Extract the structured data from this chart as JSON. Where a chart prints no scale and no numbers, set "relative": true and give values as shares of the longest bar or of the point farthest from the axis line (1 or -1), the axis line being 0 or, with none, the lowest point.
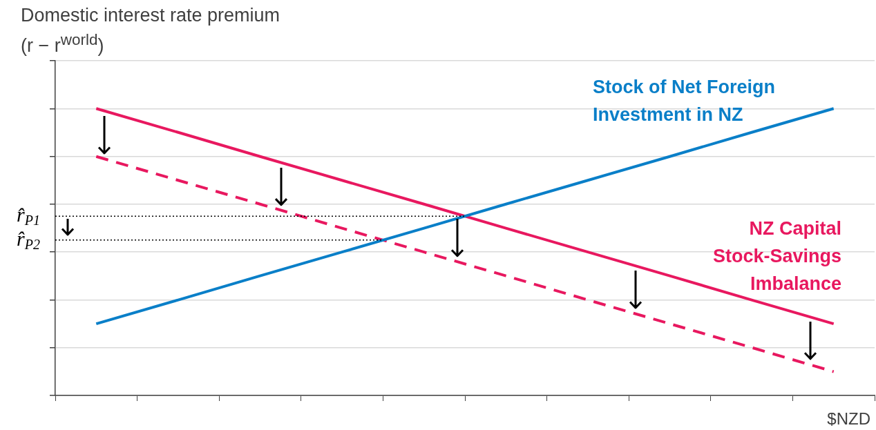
{
  "chart_data": {
    "type": "line",
    "xlabel": "$NZD",
    "ylabel": "Domestic interest rate premium (r − r$^{world}$)",
    "categories": [
      null,
      null,
      null,
      null,
      null,
      null,
      null,
      null,
      null,
      null
    ],
    "relative": true,
    "series": [
      {
        "name": "Stock of Net Foreign Investment in NZ",
        "color": "#0a7fc8",
        "values": [
          0.25,
          0.333,
          0.417,
          0.5,
          0.583,
          0.667,
          0.75,
          0.833,
          0.917,
          1
        ]
      },
      {
        "name": "NZ Capital Stock-Savings Imbalance",
        "color": "#e8185f",
        "values": [
          1,
          0.917,
          0.833,
          0.75,
          0.667,
          0.583,
          0.5,
          0.417,
          0.333,
          0.25
        ]
      },
      {
        "color": "#e8185f",
        "line_style": "dashed",
        "values": [
          0.833,
          0.75,
          0.667,
          0.583,
          0.5,
          0.417,
          0.333,
          0.25,
          0.167,
          0.083
        ]
      }
    ],
    "ref_lines": [
      {
        "axis": "y",
        "value": 0.625,
        "label": "r̂$_{P1}$",
        "color": "#000000",
        "line_style": "dotted"
      },
      {
        "axis": "y",
        "value": 0.542,
        "label": "r̂$_{P2}$",
        "color": "#000000",
        "line_style": "dotted"
      }
    ],
    "grid": "y",
    "legend": false,
    "tick_labels": false,
    "marker": "none",
    "line_style": "solid"
  }
}
